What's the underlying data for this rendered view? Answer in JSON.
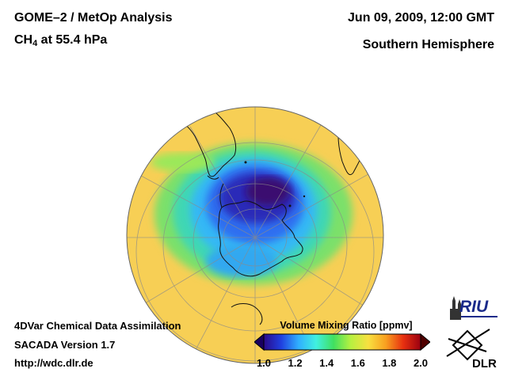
{
  "header": {
    "title_line1": "GOME–2 / MetOp Analysis",
    "species_main": "CH",
    "species_sub": "4",
    "species_rest": " at 55.4 hPa",
    "datetime": "Jun 09, 2009, 12:00 GMT",
    "region": "Southern Hemisphere"
  },
  "footer": {
    "system": "4DVar Chemical Data Assimilation",
    "version": "SACADA Version 1.7",
    "url": "http://wdc.dlr.de"
  },
  "colorbar": {
    "label": "Volume Mixing Ratio [ppmv]",
    "ticks": [
      "1.0",
      "1.2",
      "1.4",
      "1.6",
      "1.8",
      "2.0"
    ],
    "min": 1.0,
    "max": 2.0,
    "colors": [
      "#2a0a8a",
      "#2040e0",
      "#30b0ff",
      "#40f0e0",
      "#40e060",
      "#b8f040",
      "#f8e040",
      "#f8a020",
      "#e83010",
      "#9a0010"
    ]
  },
  "logos": {
    "riu": "RIU",
    "dlr": "DLR"
  }
}
